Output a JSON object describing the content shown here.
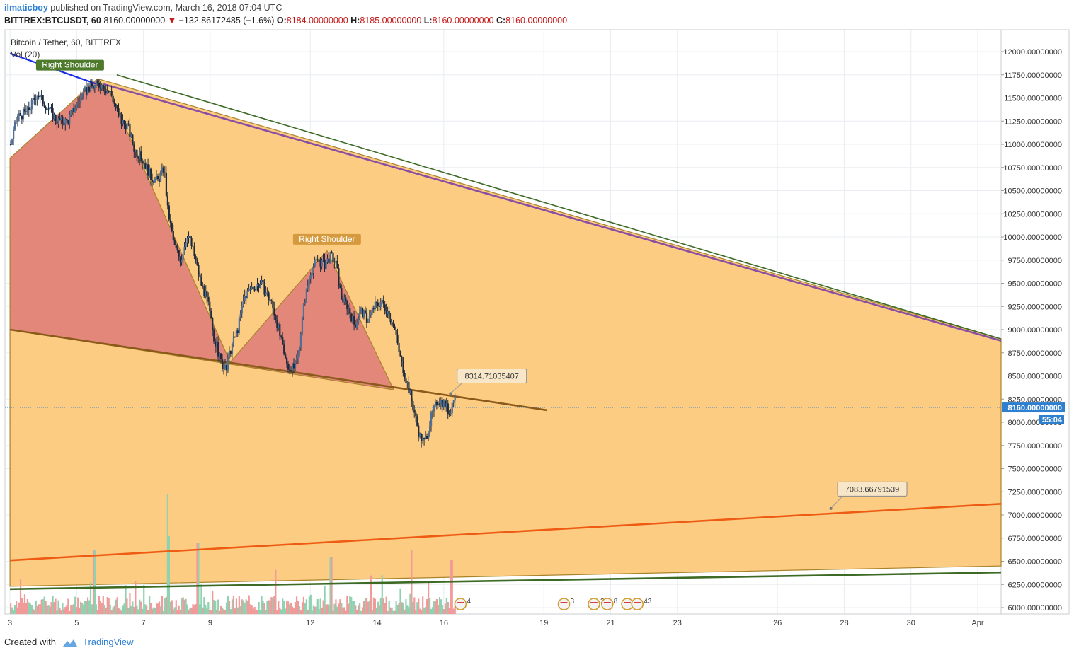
{
  "header": {
    "author": "ilmaticboy",
    "published_text": " published on TradingView.com, March 16, 2018 07:04 UTC",
    "symbol": "BITTREX:BTCUSDT, 60",
    "last": "8160.00000000",
    "change_arrow": "▼",
    "change": "−132.86172485 (−1.6%)",
    "o_label": "O:",
    "o_value": "8184.00000000",
    "h_label": "H:",
    "h_value": "8185.00000000",
    "l_label": "L:",
    "l_value": "8160.00000000",
    "c_label": "C:",
    "c_value": "8160.00000000"
  },
  "legend": {
    "title": "Bitcoin / Tether, 60, BITTREX",
    "volume": "Vol (20)"
  },
  "footer": {
    "created_with": "Created with",
    "brand": "TradingView"
  },
  "colors": {
    "up": "#4d6f99",
    "down": "#1c2a3c",
    "orange_fill": "#fdc97c",
    "red_fill": "#e08379",
    "purple_line": "#8a4fa0",
    "green_line": "#3d6b25",
    "orange_line": "#ee5b12",
    "brown_line": "#8a5a1a",
    "blue_line": "#1a2ee6",
    "grid": "#e9edf1",
    "price_tag": "#2f7fd0"
  },
  "chart_data": {
    "type": "line",
    "title": "Bitcoin / Tether, 60, BITTREX",
    "ylim": [
      5950,
      12150
    ],
    "y_ticks": [
      "12000.00000000",
      "11750.00000000",
      "11500.00000000",
      "11250.00000000",
      "11000.00000000",
      "10750.00000000",
      "10500.00000000",
      "10250.00000000",
      "10000.00000000",
      "9750.00000000",
      "9500.00000000",
      "9250.00000000",
      "9000.00000000",
      "8750.00000000",
      "8500.00000000",
      "8250.00000000",
      "8000.00000000",
      "7750.00000000",
      "7500.00000000",
      "7250.00000000",
      "7000.00000000",
      "6750.00000000",
      "6500.00000000",
      "6250.00000000",
      "6000.00000000"
    ],
    "x_ticks": [
      {
        "label": "3",
        "day": 3
      },
      {
        "label": "5",
        "day": 5
      },
      {
        "label": "7",
        "day": 7
      },
      {
        "label": "9",
        "day": 9
      },
      {
        "label": "12",
        "day": 12
      },
      {
        "label": "14",
        "day": 14
      },
      {
        "label": "16",
        "day": 16
      },
      {
        "label": "19",
        "day": 19
      },
      {
        "label": "21",
        "day": 21
      },
      {
        "label": "23",
        "day": 23
      },
      {
        "label": "26",
        "day": 26
      },
      {
        "label": "28",
        "day": 28
      },
      {
        "label": "30",
        "day": 30
      },
      {
        "label": "Apr",
        "day": 32
      }
    ],
    "price_path": [
      [
        3.0,
        11000
      ],
      [
        3.2,
        11300
      ],
      [
        3.5,
        11350
      ],
      [
        3.8,
        11550
      ],
      [
        4.1,
        11400
      ],
      [
        4.4,
        11250
      ],
      [
        4.7,
        11250
      ],
      [
        5.0,
        11450
      ],
      [
        5.3,
        11600
      ],
      [
        5.7,
        11650
      ],
      [
        6.0,
        11550
      ],
      [
        6.3,
        11250
      ],
      [
        6.5,
        11200
      ],
      [
        6.7,
        10950
      ],
      [
        7.0,
        10800
      ],
      [
        7.2,
        10650
      ],
      [
        7.4,
        10600
      ],
      [
        7.6,
        10750
      ],
      [
        7.7,
        10300
      ],
      [
        7.9,
        9900
      ],
      [
        8.1,
        9750
      ],
      [
        8.3,
        10050
      ],
      [
        8.5,
        9800
      ],
      [
        8.7,
        9500
      ],
      [
        8.9,
        9300
      ],
      [
        9.1,
        8900
      ],
      [
        9.3,
        8650
      ],
      [
        9.45,
        8550
      ],
      [
        9.6,
        8800
      ],
      [
        9.8,
        9000
      ],
      [
        10.0,
        9350
      ],
      [
        10.2,
        9450
      ],
      [
        10.5,
        9500
      ],
      [
        10.8,
        9300
      ],
      [
        11.0,
        9050
      ],
      [
        11.2,
        8700
      ],
      [
        11.4,
        8550
      ],
      [
        11.6,
        8700
      ],
      [
        11.8,
        9300
      ],
      [
        12.0,
        9650
      ],
      [
        12.2,
        9750
      ],
      [
        12.4,
        9700
      ],
      [
        12.6,
        9800
      ],
      [
        12.75,
        9700
      ],
      [
        12.9,
        9350
      ],
      [
        13.1,
        9250
      ],
      [
        13.3,
        9050
      ],
      [
        13.5,
        9200
      ],
      [
        13.7,
        9100
      ],
      [
        13.9,
        9250
      ],
      [
        14.1,
        9300
      ],
      [
        14.3,
        9200
      ],
      [
        14.5,
        9000
      ],
      [
        14.7,
        8650
      ],
      [
        14.9,
        8400
      ],
      [
        15.1,
        8100
      ],
      [
        15.25,
        7850
      ],
      [
        15.4,
        7780
      ],
      [
        15.6,
        8050
      ],
      [
        15.8,
        8250
      ],
      [
        16.0,
        8200
      ],
      [
        16.15,
        8100
      ],
      [
        16.3,
        8300
      ],
      [
        16.35,
        8230
      ]
    ],
    "candle_range": [
      3.0,
      16.35
    ],
    "volume": {
      "seed": 7,
      "spikes": [
        [
          7.7,
          0.85
        ],
        [
          7.75,
          0.55
        ],
        [
          8.6,
          0.5
        ],
        [
          5.5,
          0.45
        ],
        [
          12.6,
          0.4
        ],
        [
          15.0,
          0.45
        ],
        [
          16.2,
          0.38
        ]
      ]
    },
    "current_price": 8160,
    "price_tag": "8160.00000000",
    "countdown": "55:04",
    "patterns": [
      {
        "kind": "hs_large",
        "fill": "orange_fill",
        "points": [
          [
            3.0,
            10850
          ],
          [
            5.7,
            11700
          ],
          [
            32.7,
            8900
          ],
          [
            32.7,
            6450
          ],
          [
            3.0,
            6230
          ]
        ]
      },
      {
        "kind": "hs_small",
        "fill": "red_fill",
        "points": [
          [
            3.0,
            10850
          ],
          [
            5.6,
            11700
          ],
          [
            6.0,
            11550
          ],
          [
            9.6,
            8650
          ],
          [
            12.5,
            9850
          ],
          [
            14.5,
            8350
          ],
          [
            3.0,
            9000
          ]
        ]
      }
    ],
    "lines": [
      {
        "name": "upper",
        "color": "green_line",
        "from": [
          6.2,
          11750
        ],
        "to": [
          32.7,
          8900
        ],
        "width": 1.6
      },
      {
        "name": "upper_purple",
        "color": "purple_line",
        "from": [
          5.8,
          11650
        ],
        "to": [
          32.7,
          8880
        ],
        "width": 2.6
      },
      {
        "name": "neckline",
        "color": "brown_line",
        "from": [
          3.0,
          9000
        ],
        "to": [
          19.1,
          8130
        ],
        "width": 2.6
      },
      {
        "name": "support_orange",
        "color": "orange_line",
        "from": [
          3.0,
          6510
        ],
        "to": [
          32.7,
          7120
        ],
        "width": 2.6
      },
      {
        "name": "support_green",
        "color": "green_line",
        "from": [
          3.0,
          6200
        ],
        "to": [
          32.7,
          6380
        ],
        "width": 2.6
      },
      {
        "name": "blue_trend",
        "color": "blue_line",
        "from": [
          3.0,
          11980
        ],
        "to": [
          5.6,
          11650
        ],
        "width": 2.2
      }
    ],
    "annotations": [
      {
        "text": "Right Shoulder",
        "day": 4.8,
        "price": 11850,
        "bg": "#4e7a2c",
        "fg": "#ffffff"
      },
      {
        "text": "Right Shoulder",
        "day": 12.5,
        "price": 9970,
        "bg": "#d59a3e",
        "fg": "#ffffff"
      }
    ],
    "callouts": [
      {
        "text": "8314.71035407",
        "day": 16.2,
        "price": 8310,
        "box_day": 16.4,
        "box_price": 8500
      },
      {
        "text": "7083.66791539",
        "day": 27.6,
        "price": 7070,
        "box_day": 27.8,
        "box_price": 7280
      }
    ],
    "events": [
      {
        "day": 16.5,
        "label": "4"
      },
      {
        "day": 19.6,
        "label": "3"
      },
      {
        "day": 20.5,
        "label": "2"
      },
      {
        "day": 20.9,
        "label": "8"
      },
      {
        "day": 21.5,
        "label": "5"
      },
      {
        "day": 21.8,
        "label": "43"
      }
    ]
  }
}
